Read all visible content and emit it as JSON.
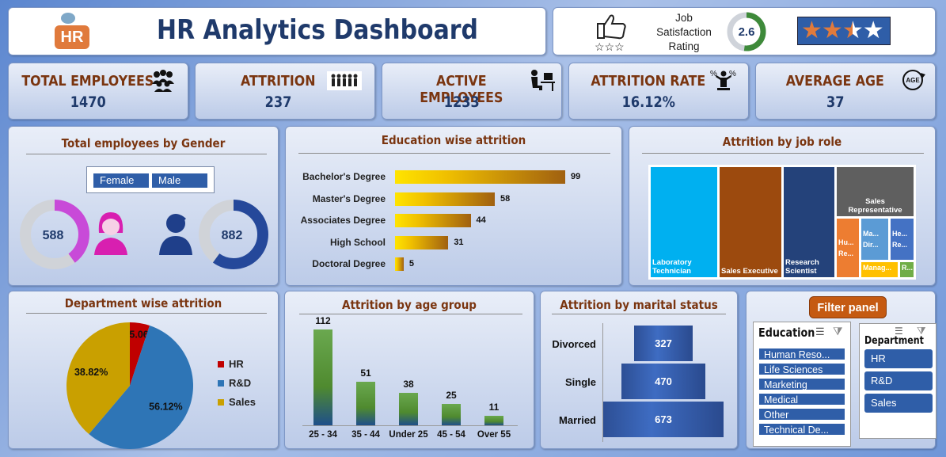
{
  "header": {
    "logo_text": "HR",
    "title": "HR Analytics Dashboard"
  },
  "satisfaction": {
    "label_line1": "Job",
    "label_line2": "Satisfaction",
    "label_line3": "Rating",
    "value": "2.6",
    "fraction": 0.52,
    "stars_filled": 2.5,
    "stars_total": 4
  },
  "kpis": [
    {
      "label": "TOTAL EMPLOYEES",
      "value": "1470",
      "icon": "people-group-icon"
    },
    {
      "label": "ATTRITION",
      "value": "237",
      "icon": "people-leaving-icon"
    },
    {
      "label": "ACTIVE EMPLOYEES",
      "value": "1233",
      "icon": "employee-at-desk-icon"
    },
    {
      "label": "ATTRITION RATE",
      "value": "16.12%",
      "icon": "percent-person-icon"
    },
    {
      "label": "AVERAGE AGE",
      "value": "37",
      "icon": "age-icon"
    }
  ],
  "gender": {
    "title": "Total employees by Gender",
    "legend": [
      "Female",
      "Male"
    ],
    "female": "588",
    "male": "882",
    "female_share": 0.4,
    "male_share": 0.6,
    "colors": {
      "female": "#d81fb0",
      "male": "#1f3f8a"
    }
  },
  "education": {
    "title": "Education wise attrition",
    "rows": [
      {
        "label": "Bachelor's Degree",
        "value": 99
      },
      {
        "label": "Master's Degree",
        "value": 58
      },
      {
        "label": "Associates Degree",
        "value": 44
      },
      {
        "label": "High School",
        "value": 31
      },
      {
        "label": "Doctoral Degree",
        "value": 5
      }
    ]
  },
  "jobrole": {
    "title": "Attrition by job role",
    "tiles": [
      {
        "label": "Laboratory Technician",
        "color": "#00b0f0"
      },
      {
        "label": "Sales Executive",
        "color": "#9c4a0e"
      },
      {
        "label": "Research Scientist",
        "color": "#24427a"
      },
      {
        "label": "Sales Representative",
        "color": "#5f5f5f"
      },
      {
        "label": "Hu... Re...",
        "color": "#ed7d31"
      },
      {
        "label": "Ma... Dir...",
        "color": "#5b9bd5"
      },
      {
        "label": "He... Re...",
        "color": "#4472c4"
      },
      {
        "label": "Manag...",
        "color": "#ffc000"
      },
      {
        "label": "R...",
        "color": "#70ad47"
      }
    ]
  },
  "department": {
    "title": "Department wise attrition",
    "slices": [
      {
        "label": "HR",
        "pct": "5.06%",
        "value": 5.06,
        "color": "#c00000"
      },
      {
        "label": "R&D",
        "pct": "56.12%",
        "value": 56.12,
        "color": "#2e75b6"
      },
      {
        "label": "Sales",
        "pct": "38.82%",
        "value": 38.82,
        "color": "#c9a000"
      }
    ]
  },
  "agegroup": {
    "title": "Attrition by age group",
    "bars": [
      {
        "label": "25 - 34",
        "value": 112
      },
      {
        "label": "35 - 44",
        "value": 51
      },
      {
        "label": "Under 25",
        "value": 38
      },
      {
        "label": "45 - 54",
        "value": 25
      },
      {
        "label": "Over 55",
        "value": 11
      }
    ]
  },
  "marital": {
    "title": "Attrition by marital status",
    "rows": [
      {
        "label": "Divorced",
        "value": 327
      },
      {
        "label": "Single",
        "value": 470
      },
      {
        "label": "Married",
        "value": 673
      }
    ]
  },
  "filter": {
    "title": "Filter panel",
    "education": {
      "header": "Education",
      "items": [
        "Human Reso...",
        "Life Sciences",
        "Marketing",
        "Medical",
        "Other",
        "Technical De..."
      ]
    },
    "department": {
      "header": "Department",
      "items": [
        "HR",
        "R&D",
        "Sales"
      ]
    }
  }
}
